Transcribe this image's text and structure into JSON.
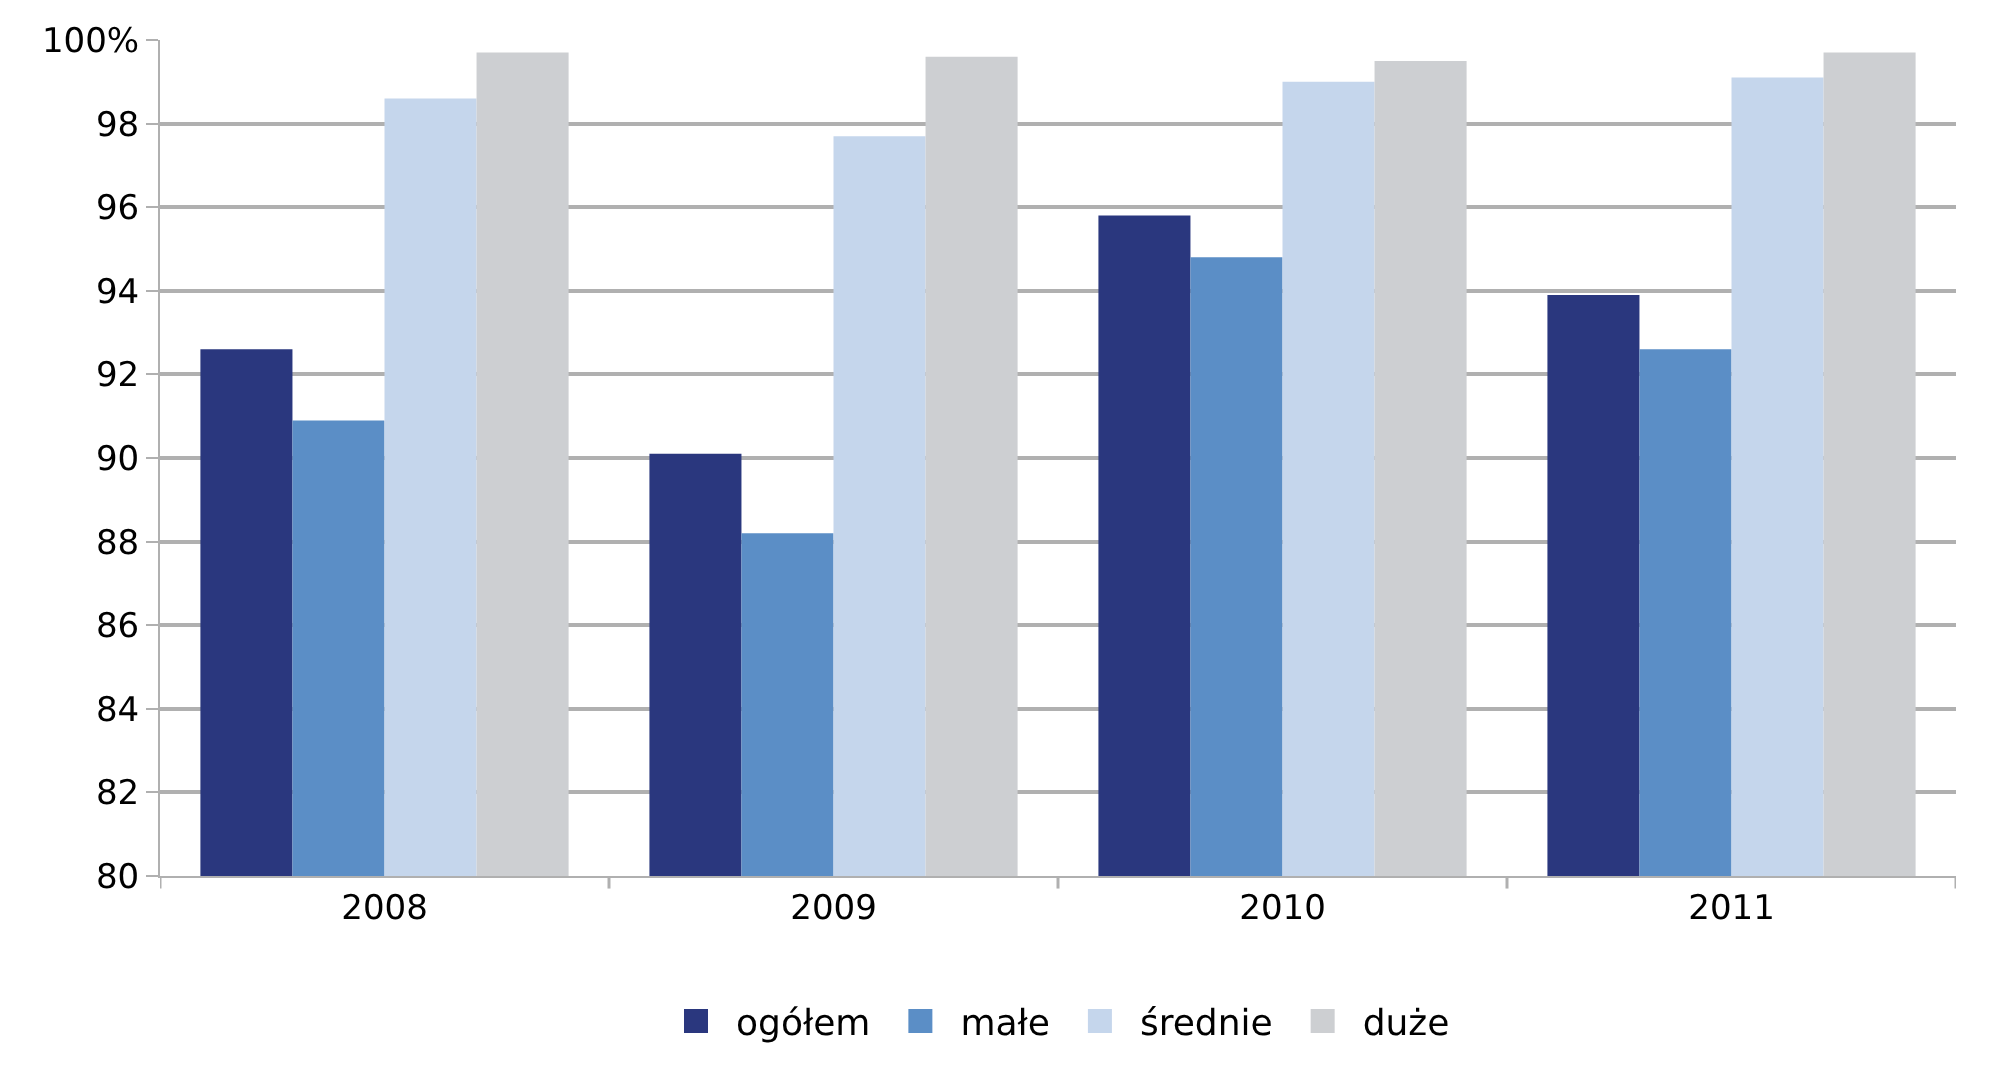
{
  "chart_data": {
    "type": "bar",
    "categories": [
      "2008",
      "2009",
      "2010",
      "2011"
    ],
    "series": [
      {
        "name": "ogółem",
        "color": "#2a377e",
        "values": [
          92.6,
          90.1,
          95.8,
          93.9
        ]
      },
      {
        "name": "małe",
        "color": "#5b8ec6",
        "values": [
          90.9,
          88.2,
          94.8,
          92.6
        ]
      },
      {
        "name": "średnie",
        "color": "#c5d6ec",
        "values": [
          98.6,
          97.7,
          99.0,
          99.1
        ]
      },
      {
        "name": "duże",
        "color": "#cdcfd2",
        "values": [
          99.7,
          99.6,
          99.5,
          99.7
        ]
      }
    ],
    "ylim": [
      80,
      100
    ],
    "yticks": [
      80,
      82,
      84,
      86,
      88,
      90,
      92,
      94,
      96,
      98,
      {
        "value": 100,
        "label": "100%"
      }
    ],
    "grid": "y",
    "legend": "bottom"
  }
}
